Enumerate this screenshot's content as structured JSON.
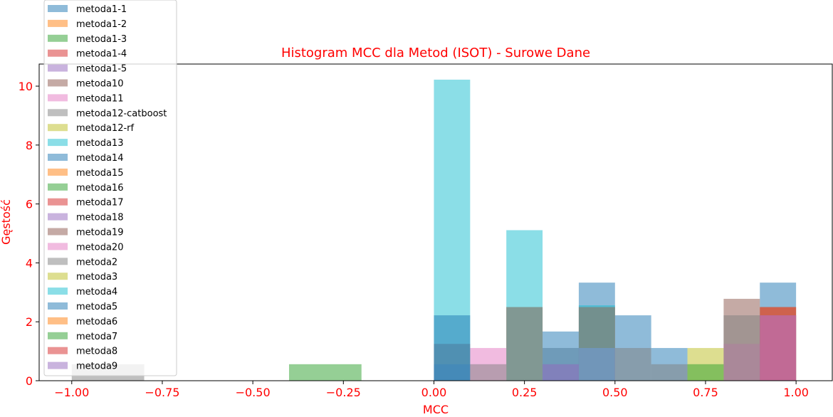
{
  "chart_data": {
    "type": "bar",
    "title": "Histogram MCC dla Metod (ISOT) - Surowe Dane",
    "xlabel": "MCC",
    "ylabel": "Gęstość",
    "xlim": [
      -1.09,
      1.1
    ],
    "ylim": [
      0,
      10.75
    ],
    "xticks": [
      -1.0,
      -0.75,
      -0.5,
      -0.25,
      0.0,
      0.25,
      0.5,
      0.75,
      1.0
    ],
    "xtick_labels": [
      "−1.00",
      "−0.75",
      "−0.50",
      "−0.25",
      "0.00",
      "0.25",
      "0.50",
      "0.75",
      "1.00"
    ],
    "yticks": [
      0,
      2,
      4,
      6,
      8,
      10
    ],
    "ytick_labels": [
      "0",
      "2",
      "4",
      "6",
      "8",
      "10"
    ],
    "bar_alpha": 0.5,
    "legend_position": "upper-left",
    "series": [
      {
        "name": "metoda1-1",
        "color": "#1f77b4",
        "bins": [
          [
            0.4,
            0.5,
            3.33
          ],
          [
            0.5,
            0.6,
            2.22
          ],
          [
            0.6,
            0.7,
            1.11
          ],
          [
            0.9,
            1.0,
            3.33
          ]
        ]
      },
      {
        "name": "metoda1-2",
        "color": "#ff7f0e",
        "bins": [
          [
            0.2,
            0.3,
            2.5
          ],
          [
            0.4,
            0.5,
            2.5
          ],
          [
            0.9,
            1.0,
            2.5
          ]
        ]
      },
      {
        "name": "metoda1-3",
        "color": "#2ca02c",
        "bins": [
          [
            -0.4,
            -0.2,
            0.56
          ]
        ]
      },
      {
        "name": "metoda1-4",
        "color": "#d62728",
        "bins": [
          [
            0.0,
            0.1,
            1.25
          ],
          [
            0.2,
            0.3,
            2.5
          ],
          [
            0.4,
            0.5,
            2.5
          ],
          [
            0.9,
            1.0,
            2.5
          ]
        ]
      },
      {
        "name": "metoda1-5",
        "color": "#9467bd",
        "bins": [
          [
            0.0,
            0.1,
            0.56
          ],
          [
            0.4,
            0.5,
            1.11
          ],
          [
            0.9,
            1.0,
            2.22
          ]
        ]
      },
      {
        "name": "metoda10",
        "color": "#8c564b",
        "bins": [
          [
            0.8,
            0.9,
            2.78
          ],
          [
            0.9,
            1.0,
            2.22
          ]
        ]
      },
      {
        "name": "metoda11",
        "color": "#e377c2",
        "bins": [
          [
            0.1,
            0.2,
            1.11
          ],
          [
            0.4,
            0.5,
            1.11
          ],
          [
            0.8,
            0.9,
            1.25
          ],
          [
            0.9,
            1.0,
            2.22
          ]
        ]
      },
      {
        "name": "metoda12-catboost",
        "color": "#7f7f7f",
        "bins": [
          [
            -1.0,
            -0.8,
            0.56
          ],
          [
            0.3,
            0.4,
            1.11
          ],
          [
            0.5,
            0.6,
            1.11
          ],
          [
            0.8,
            0.9,
            2.22
          ]
        ]
      },
      {
        "name": "metoda12-rf",
        "color": "#bcbd22",
        "bins": [
          [
            0.7,
            0.8,
            1.11
          ]
        ]
      },
      {
        "name": "metoda13",
        "color": "#17becf",
        "bins": [
          [
            0.0,
            0.1,
            10.22
          ],
          [
            0.2,
            0.3,
            5.11
          ],
          [
            0.4,
            0.5,
            2.56
          ]
        ]
      },
      {
        "name": "metoda14",
        "color": "#1f77b4",
        "bins": [
          [
            0.3,
            0.4,
            1.67
          ]
        ]
      },
      {
        "name": "metoda15",
        "color": "#ff7f0e",
        "bins": []
      },
      {
        "name": "metoda16",
        "color": "#2ca02c",
        "bins": [
          [
            0.7,
            0.8,
            0.56
          ]
        ]
      },
      {
        "name": "metoda17",
        "color": "#d62728",
        "bins": []
      },
      {
        "name": "metoda18",
        "color": "#9467bd",
        "bins": [
          [
            0.3,
            0.4,
            0.56
          ]
        ]
      },
      {
        "name": "metoda19",
        "color": "#8c564b",
        "bins": []
      },
      {
        "name": "metoda20",
        "color": "#e377c2",
        "bins": []
      },
      {
        "name": "metoda2",
        "color": "#7f7f7f",
        "bins": [
          [
            0.1,
            0.2,
            0.56
          ],
          [
            0.6,
            0.7,
            0.56
          ]
        ]
      },
      {
        "name": "metoda3",
        "color": "#bcbd22",
        "bins": []
      },
      {
        "name": "metoda4",
        "color": "#17becf",
        "bins": []
      },
      {
        "name": "metoda5",
        "color": "#1f77b4",
        "bins": [
          [
            0.0,
            0.1,
            2.22
          ]
        ]
      },
      {
        "name": "metoda6",
        "color": "#ff7f0e",
        "bins": []
      },
      {
        "name": "metoda7",
        "color": "#2ca02c",
        "bins": []
      },
      {
        "name": "metoda8",
        "color": "#d62728",
        "bins": []
      },
      {
        "name": "metoda9",
        "color": "#9467bd",
        "bins": []
      }
    ]
  }
}
